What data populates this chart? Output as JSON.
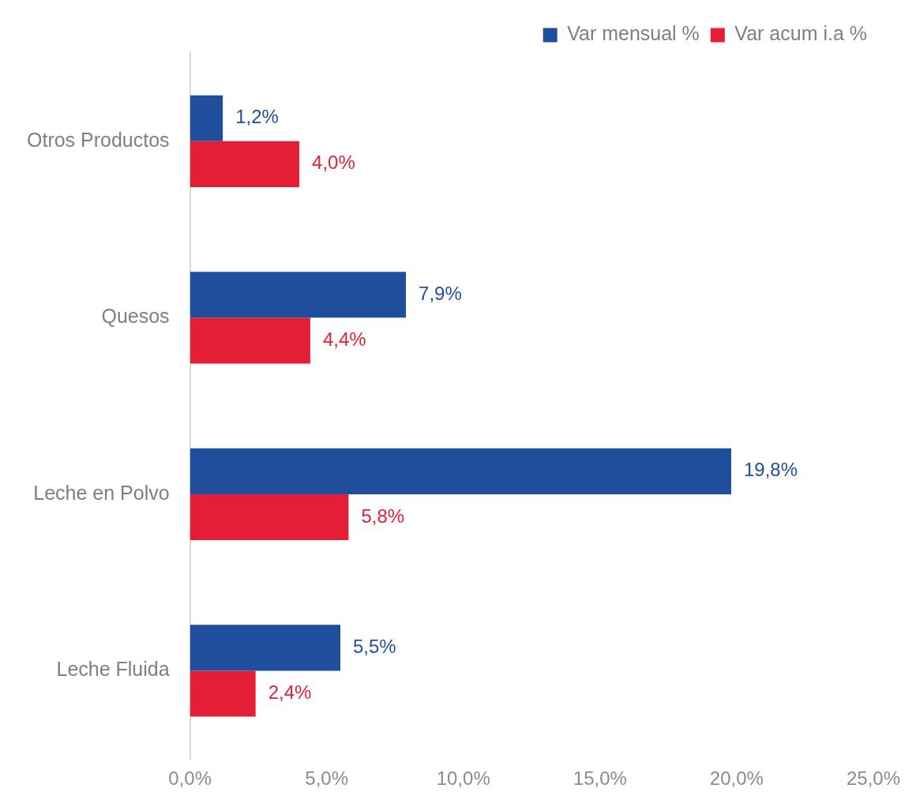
{
  "chart_data": {
    "type": "bar",
    "orientation": "horizontal",
    "categories": [
      "Otros Productos",
      "Quesos",
      "Leche en Polvo",
      "Leche Fluida"
    ],
    "series": [
      {
        "name": "Var mensual %",
        "color": "#1f4e9c",
        "values": [
          1.2,
          7.9,
          19.8,
          5.5
        ],
        "value_labels": [
          "1,2%",
          "7,9%",
          "19,8%",
          "5,5%"
        ]
      },
      {
        "name": "Var acum i.a %",
        "color": "#e31e35",
        "values": [
          4.0,
          4.4,
          5.8,
          2.4
        ],
        "value_labels": [
          "4,0%",
          "4,4%",
          "5,8%",
          "2,4%"
        ]
      }
    ],
    "xlim": [
      0,
      25
    ],
    "xticks": [
      {
        "value": 0,
        "label": "0,0%"
      },
      {
        "value": 5,
        "label": "5,0%"
      },
      {
        "value": 10,
        "label": "10,0%"
      },
      {
        "value": 15,
        "label": "15,0%"
      },
      {
        "value": 20,
        "label": "20,0%"
      },
      {
        "value": 25,
        "label": "25,0%"
      }
    ],
    "grid": false,
    "legend": "top right"
  }
}
